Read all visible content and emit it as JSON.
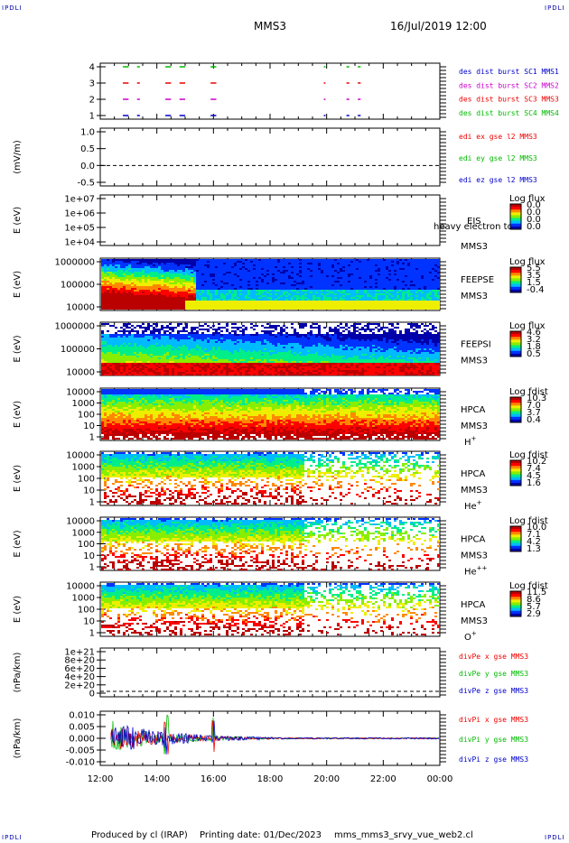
{
  "header": {
    "corner_tl": "IPDLI",
    "corner_tr": "IPDLI",
    "corner_bl": "IPDLI",
    "corner_br": "IPDLI",
    "spacecraft": "MMS3",
    "datetime": "16/Jul/2019 12:00"
  },
  "footer": {
    "produced": "Produced by cl (IRAP)",
    "printing": "Printing date: 01/Dec/2023",
    "script": "mms_mms3_srvy_vue_web2.cl"
  },
  "colors": {
    "red": "#ee0000",
    "magenta": "#cc00cc",
    "green": "#00bb00",
    "blue": "#0000cc",
    "colorbar": [
      "#0000aa",
      "#0033ff",
      "#00bbff",
      "#00ee88",
      "#88ee00",
      "#eeee00",
      "#ff8800",
      "#ff0000",
      "#bb0000"
    ]
  },
  "chart_data": {
    "type": "heatmap",
    "x_axis": {
      "ticks": [
        "12:00",
        "14:00",
        "16:00",
        "18:00",
        "20:00",
        "22:00",
        "00:00"
      ]
    },
    "panels": [
      {
        "id": "des-dist",
        "type": "scatter",
        "yticks": [
          "4",
          "3",
          "2",
          "1"
        ],
        "legend": [
          {
            "text": "des dist burst SC1 MMS1",
            "color": "#0000cc"
          },
          {
            "text": "des dist burst SC2 MMS2",
            "color": "#cc00cc"
          },
          {
            "text": "des dist burst SC3 MMS3",
            "color": "#ee0000"
          },
          {
            "text": "des dist burst SC4 MMS4",
            "color": "#00bb00"
          }
        ],
        "burst_intervals_hours": [
          [
            12.8,
            13.0
          ],
          [
            13.3,
            13.4
          ],
          [
            14.3,
            14.5
          ],
          [
            14.8,
            15.0
          ],
          [
            15.9,
            16.1
          ],
          [
            19.9,
            19.95
          ],
          [
            20.7,
            20.8
          ],
          [
            21.1,
            21.2
          ]
        ]
      },
      {
        "id": "edi",
        "type": "line",
        "ylabel": "(mV/m)",
        "yticks": [
          "1.0",
          "0.5",
          "0.0",
          "-0.5"
        ],
        "legend": [
          {
            "text": "edi ex gse l2 MMS3",
            "color": "#ee0000"
          },
          {
            "text": "edi ey gse l2 MMS3",
            "color": "#00bb00"
          },
          {
            "text": "edi ez gse l2 MMS3",
            "color": "#0000cc"
          }
        ]
      },
      {
        "id": "eis",
        "type": "heatmap",
        "ylabel": "E (eV)",
        "yticks": [
          "1e+07",
          "1e+06",
          "1e+05",
          "1e+04"
        ],
        "instrument": "EIS",
        "instrument_note": "heavy electron to",
        "spacecraft": "MMS3",
        "cbar_title": "Log flux",
        "cbar_ticks": [
          "0.0",
          "0.0",
          "0.0",
          "0.0"
        ]
      },
      {
        "id": "feeps-e",
        "type": "heatmap",
        "ylabel": "E (eV)",
        "yticks": [
          "1000000",
          "100000",
          "10000"
        ],
        "instrument": "FEEPSE",
        "spacecraft": "MMS3",
        "cbar_title": "Log flux",
        "cbar_ticks": [
          "5.5",
          "3.5",
          "1.5",
          "-0.4"
        ]
      },
      {
        "id": "feeps-i",
        "type": "heatmap",
        "ylabel": "E (eV)",
        "yticks": [
          "1000000",
          "100000",
          "10000"
        ],
        "instrument": "FEEPSI",
        "spacecraft": "MMS3",
        "cbar_title": "Log flux",
        "cbar_ticks": [
          "4.6",
          "3.2",
          "1.8",
          "0.5"
        ]
      },
      {
        "id": "hpca-h",
        "type": "heatmap",
        "ylabel": "E (eV)",
        "yticks": [
          "10000",
          "1000",
          "100",
          "10",
          "1"
        ],
        "instrument": "HPCA",
        "spacecraft": "MMS3",
        "species": "H+",
        "cbar_title": "Log fdist",
        "cbar_ticks": [
          "10.3",
          "7.0",
          "3.7",
          "0.4"
        ]
      },
      {
        "id": "hpca-he",
        "type": "heatmap",
        "ylabel": "E (eV)",
        "yticks": [
          "10000",
          "1000",
          "100",
          "10",
          "1"
        ],
        "instrument": "HPCA",
        "spacecraft": "MMS3",
        "species": "He+",
        "cbar_title": "Log fdist",
        "cbar_ticks": [
          "10.2",
          "7.4",
          "4.5",
          "1.6"
        ]
      },
      {
        "id": "hpca-hepp",
        "type": "heatmap",
        "ylabel": "E (eV)",
        "yticks": [
          "10000",
          "1000",
          "100",
          "10",
          "1"
        ],
        "instrument": "HPCA",
        "spacecraft": "MMS3",
        "species": "He++",
        "cbar_title": "Log fdist",
        "cbar_ticks": [
          "10.0",
          "7.1",
          "4.2",
          "1.3"
        ]
      },
      {
        "id": "hpca-o",
        "type": "heatmap",
        "ylabel": "E (eV)",
        "yticks": [
          "10000",
          "1000",
          "100",
          "10",
          "1"
        ],
        "instrument": "HPCA",
        "spacecraft": "MMS3",
        "species": "O+",
        "cbar_title": "Log fdist",
        "cbar_ticks": [
          "11.5",
          "8.6",
          "5.7",
          "2.9"
        ]
      },
      {
        "id": "divpe",
        "type": "line",
        "ylabel": "(nPa/km)",
        "yticks": [
          "1e+21",
          "8e+20",
          "6e+20",
          "4e+20",
          "2e+20",
          "0"
        ],
        "legend": [
          {
            "text": "divPe x gse MMS3",
            "color": "#ee0000"
          },
          {
            "text": "divPe y gse MMS3",
            "color": "#00bb00"
          },
          {
            "text": "divPe z gse MMS3",
            "color": "#0000cc"
          }
        ]
      },
      {
        "id": "divpi",
        "type": "line",
        "ylabel": "(nPa/km)",
        "yticks": [
          "0.010",
          "0.005",
          "0.000",
          "-0.005",
          "-0.010"
        ],
        "legend": [
          {
            "text": "divPi x gse MMS3",
            "color": "#ee0000"
          },
          {
            "text": "divPi y gse MMS3",
            "color": "#00bb00"
          },
          {
            "text": "divPi z gse MMS3",
            "color": "#0000cc"
          }
        ]
      }
    ]
  }
}
